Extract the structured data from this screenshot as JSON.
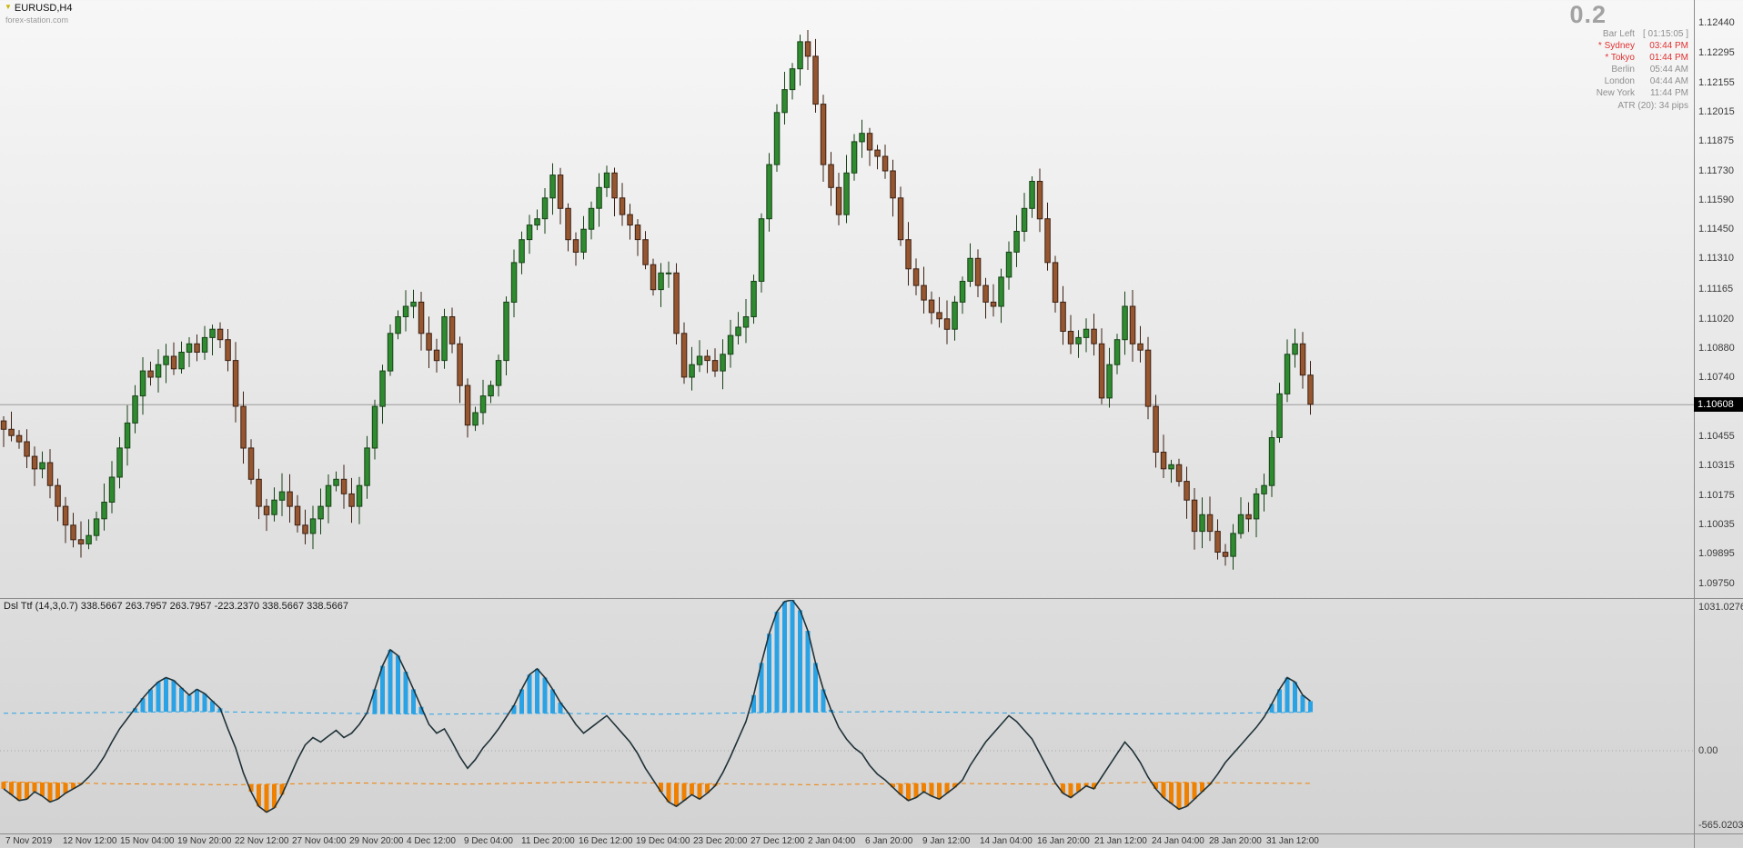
{
  "window": {
    "symbol_label": "EURUSD,H4",
    "watermark": "forex-station.com"
  },
  "top_right": {
    "big_value": "0.2",
    "clock": {
      "rows": [
        {
          "name": "Bar Left",
          "value": "[ 01:15:05 ]",
          "highlight": false
        },
        {
          "name": "* Sydney",
          "value": "03:44 PM",
          "highlight": true
        },
        {
          "name": "* Tokyo",
          "value": "01:44 PM",
          "highlight": true
        },
        {
          "name": "Berlin",
          "value": "05:44 AM",
          "highlight": false
        },
        {
          "name": "London",
          "value": "04:44 AM",
          "highlight": false
        },
        {
          "name": "New York",
          "value": "11:44 PM",
          "highlight": false
        }
      ],
      "atr": "ATR (20): 34 pips"
    }
  },
  "price_axis": {
    "ticks": [
      "1.12440",
      "1.12295",
      "1.12155",
      "1.12015",
      "1.11875",
      "1.11730",
      "1.11590",
      "1.11450",
      "1.11310",
      "1.11165",
      "1.11020",
      "1.10880",
      "1.10740",
      "1.10455",
      "1.10315",
      "1.10175",
      "1.10035",
      "1.09895",
      "1.09750"
    ],
    "current": "1.10608"
  },
  "indicator": {
    "label": "Dsl Ttf (14,3,0.7) 338.5667 263.7957 263.7957 -223.2370 338.5667 338.5667",
    "axis": {
      "max": "1031.0276",
      "zero": "0.00",
      "min": "-565.0203"
    }
  },
  "colors": {
    "bull": "#2f8b2f",
    "bull_border": "#174217",
    "bear": "#96562f",
    "bear_border": "#3d2114",
    "price_line": "#9a9a9a",
    "osc_line": "#203238",
    "osc_up": "#29a3e6",
    "osc_down": "#f08000",
    "session_red": "#e03131",
    "muted": "#8f8f8f"
  },
  "chart_data": [
    {
      "type": "candlestick",
      "symbol": "EURUSD",
      "timeframe": "H4",
      "ylim": [
        1.0968,
        1.1255
      ],
      "current_price": 1.10608,
      "first_open": 1.1053,
      "wick": 0.0009,
      "closes": [
        1.1049,
        1.1046,
        1.1043,
        1.1036,
        1.103,
        1.1033,
        1.1022,
        1.1012,
        1.1003,
        1.0996,
        1.0994,
        1.0998,
        1.1006,
        1.1014,
        1.1026,
        1.104,
        1.1052,
        1.1065,
        1.1077,
        1.1074,
        1.108,
        1.1084,
        1.1078,
        1.1086,
        1.109,
        1.1086,
        1.1093,
        1.1097,
        1.1092,
        1.1082,
        1.106,
        1.104,
        1.1025,
        1.1012,
        1.1008,
        1.1015,
        1.1019,
        1.1012,
        1.1003,
        1.0999,
        1.1006,
        1.1012,
        1.1022,
        1.1025,
        1.1018,
        1.1012,
        1.1022,
        1.104,
        1.106,
        1.1077,
        1.1095,
        1.1103,
        1.1108,
        1.111,
        1.1095,
        1.1087,
        1.1082,
        1.1103,
        1.109,
        1.107,
        1.1051,
        1.1057,
        1.1065,
        1.107,
        1.1082,
        1.111,
        1.1129,
        1.114,
        1.1147,
        1.115,
        1.116,
        1.1171,
        1.1155,
        1.114,
        1.1134,
        1.1145,
        1.1155,
        1.1165,
        1.1172,
        1.116,
        1.1152,
        1.1147,
        1.114,
        1.1128,
        1.1116,
        1.1124,
        1.1124,
        1.1095,
        1.1074,
        1.108,
        1.1084,
        1.1082,
        1.1077,
        1.1085,
        1.1094,
        1.1098,
        1.1103,
        1.112,
        1.115,
        1.1176,
        1.1201,
        1.1212,
        1.1222,
        1.1235,
        1.1228,
        1.1205,
        1.1176,
        1.1165,
        1.1152,
        1.1172,
        1.1187,
        1.1191,
        1.1183,
        1.118,
        1.1173,
        1.116,
        1.114,
        1.1126,
        1.1118,
        1.1111,
        1.1105,
        1.1102,
        1.1097,
        1.111,
        1.112,
        1.1131,
        1.1118,
        1.111,
        1.1108,
        1.1122,
        1.1134,
        1.1144,
        1.1155,
        1.1168,
        1.115,
        1.1129,
        1.111,
        1.1096,
        1.109,
        1.1093,
        1.1097,
        1.109,
        1.1064,
        1.108,
        1.1092,
        1.1108,
        1.109,
        1.1087,
        1.106,
        1.1038,
        1.103,
        1.1032,
        1.1024,
        1.1015,
        1.1,
        1.1008,
        1.1,
        1.099,
        1.0988,
        1.0999,
        1.1008,
        1.1006,
        1.1018,
        1.1022,
        1.1045,
        1.1066,
        1.1085,
        1.109,
        1.1075,
        1.1061
      ],
      "x_tick_labels": [
        "7 Nov 2019",
        "12 Nov 12:00",
        "15 Nov 04:00",
        "19 Nov 20:00",
        "22 Nov 12:00",
        "27 Nov 04:00",
        "29 Nov 20:00",
        "4 Dec 12:00",
        "9 Dec 04:00",
        "11 Dec 20:00",
        "16 Dec 12:00",
        "19 Dec 04:00",
        "23 Dec 20:00",
        "27 Dec 12:00",
        "2 Jan 04:00",
        "6 Jan 20:00",
        "9 Jan 12:00",
        "14 Jan 04:00",
        "16 Jan 20:00",
        "21 Jan 12:00",
        "24 Jan 04:00",
        "28 Jan 20:00",
        "31 Jan 12:00"
      ]
    },
    {
      "type": "line",
      "name": "Dsl Ttf (14,3,0.7)",
      "ylim": [
        -565.0203,
        1031.0276
      ],
      "current_value": 338.5667,
      "values": [
        -260,
        -300,
        -340,
        -330,
        -280,
        -310,
        -350,
        -330,
        -290,
        -260,
        -230,
        -180,
        -120,
        -40,
        60,
        150,
        220,
        290,
        360,
        420,
        470,
        500,
        480,
        430,
        380,
        420,
        390,
        340,
        290,
        150,
        20,
        -150,
        -280,
        -380,
        -420,
        -390,
        -300,
        -180,
        -60,
        40,
        90,
        60,
        100,
        140,
        90,
        120,
        180,
        260,
        420,
        580,
        690,
        650,
        540,
        420,
        300,
        180,
        120,
        150,
        60,
        -40,
        -120,
        -60,
        20,
        80,
        150,
        230,
        310,
        420,
        520,
        560,
        500,
        420,
        330,
        260,
        180,
        120,
        160,
        200,
        240,
        180,
        120,
        60,
        -20,
        -120,
        -200,
        -280,
        -350,
        -380,
        -340,
        -300,
        -330,
        -290,
        -240,
        -150,
        -40,
        80,
        200,
        380,
        600,
        800,
        950,
        1020,
        1031,
        960,
        820,
        600,
        420,
        280,
        160,
        80,
        20,
        -20,
        -100,
        -160,
        -200,
        -250,
        -300,
        -340,
        -320,
        -280,
        -310,
        -330,
        -290,
        -250,
        -200,
        -100,
        -20,
        60,
        120,
        180,
        240,
        200,
        140,
        80,
        -20,
        -120,
        -220,
        -290,
        -320,
        -280,
        -240,
        -260,
        -180,
        -100,
        -20,
        60,
        0,
        -80,
        -180,
        -260,
        -320,
        -360,
        -400,
        -380,
        -330,
        -280,
        -230,
        -160,
        -80,
        -20,
        40,
        100,
        160,
        230,
        320,
        420,
        500,
        470,
        380,
        339
      ],
      "up_level": [
        [
          0,
          256
        ],
        [
          15,
          262
        ],
        [
          25,
          268
        ],
        [
          40,
          258
        ],
        [
          55,
          250
        ],
        [
          70,
          256
        ],
        [
          85,
          250
        ],
        [
          100,
          262
        ],
        [
          115,
          268
        ],
        [
          130,
          258
        ],
        [
          145,
          252
        ],
        [
          158,
          256
        ],
        [
          169,
          264
        ]
      ],
      "down_level": [
        [
          0,
          -212
        ],
        [
          15,
          -226
        ],
        [
          30,
          -232
        ],
        [
          45,
          -220
        ],
        [
          60,
          -228
        ],
        [
          75,
          -214
        ],
        [
          90,
          -224
        ],
        [
          105,
          -232
        ],
        [
          120,
          -222
        ],
        [
          135,
          -228
        ],
        [
          150,
          -214
        ],
        [
          160,
          -220
        ],
        [
          169,
          -223
        ]
      ]
    }
  ]
}
